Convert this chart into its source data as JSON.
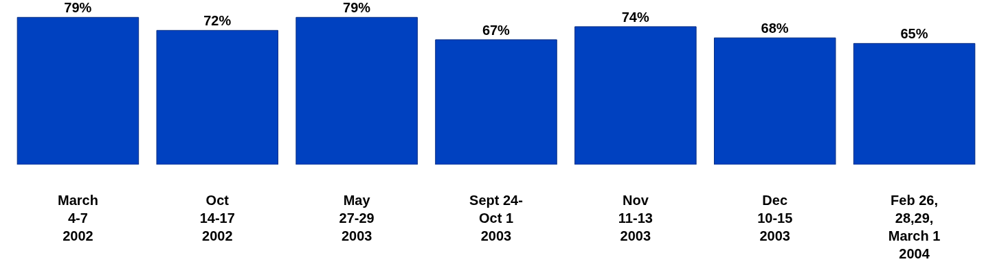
{
  "chart_data": {
    "type": "bar",
    "categories": [
      "March\n4-7\n2002",
      "Oct\n14-17\n2002",
      "May\n27-29\n2003",
      "Sept 24-\nOct 1\n2003",
      "Nov\n11-13\n2003",
      "Dec\n10-15\n2003",
      "Feb 26,\n28,29,\nMarch 1\n2004"
    ],
    "values": [
      79,
      72,
      79,
      67,
      74,
      68,
      65
    ],
    "value_labels": [
      "79%",
      "72%",
      "79%",
      "67%",
      "74%",
      "68%",
      "65%"
    ],
    "color": "#0041c0",
    "tick_labels": "x"
  }
}
